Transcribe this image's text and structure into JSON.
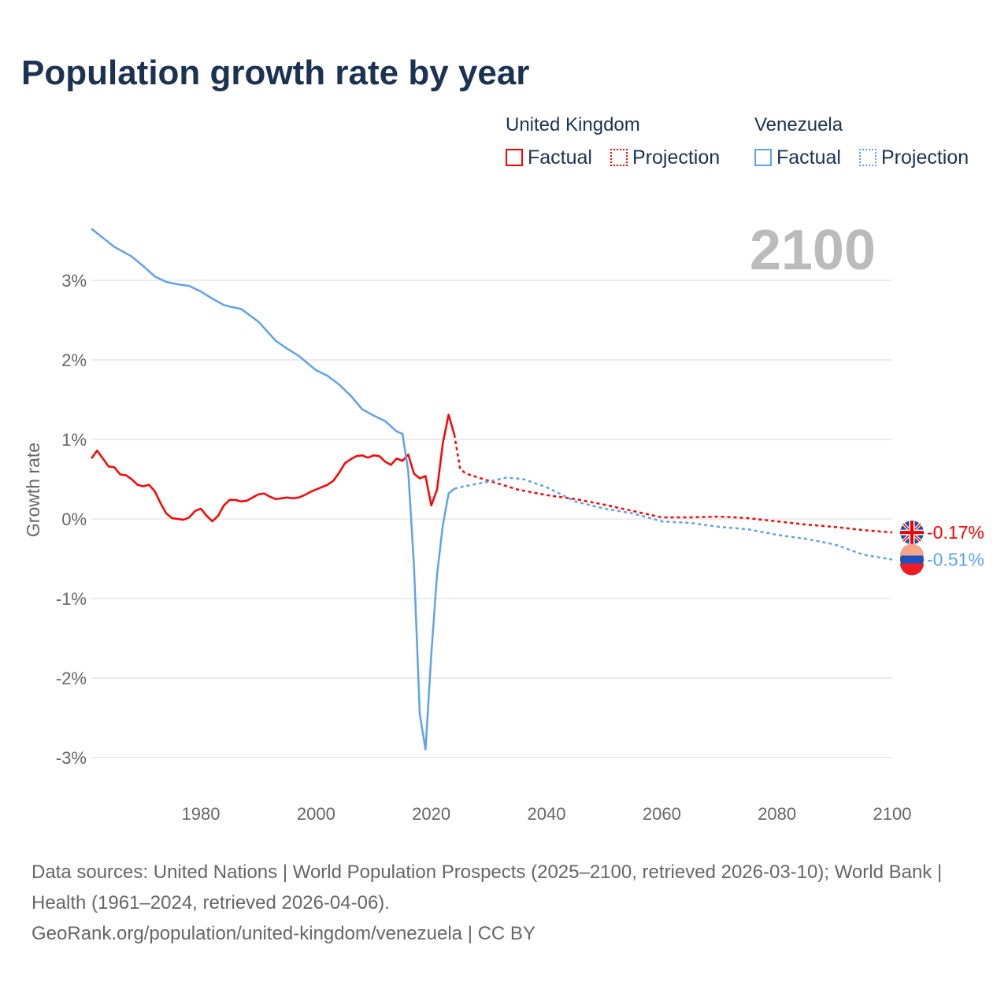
{
  "title": "Population growth rate by year",
  "legend": {
    "groups": [
      {
        "name": "United Kingdom",
        "factual": "Factual",
        "projection": "Projection",
        "color": "#ff0000"
      },
      {
        "name": "Venezuela",
        "factual": "Factual",
        "projection": "Projection",
        "color": "#5ea3e8"
      }
    ]
  },
  "year_label": "2100",
  "footer": {
    "sources": "Data sources: United Nations | World Population Prospects (2025–2100, retrieved 2026-03-10); World Bank | Health (1961–2024, retrieved 2026-04-06).",
    "credit": "GeoRank.org/population/united-kingdom/venezuela | CC BY"
  },
  "chart_data": {
    "type": "line",
    "title": "Population growth rate by year",
    "xlabel": "",
    "ylabel": "Growth rate",
    "xlim": [
      1961,
      2100
    ],
    "ylim": [
      -3.5,
      3.8
    ],
    "xticks": [
      1980,
      2000,
      2020,
      2040,
      2060,
      2080,
      2100
    ],
    "yticks": [
      -3,
      -2,
      -1,
      0,
      1,
      2,
      3
    ],
    "ytick_labels": [
      "-3%",
      "-2%",
      "-1%",
      "0%",
      "1%",
      "2%",
      "3%"
    ],
    "grid": true,
    "series": [
      {
        "name": "United Kingdom",
        "color": "#ff0000",
        "end_label": "-0.17%",
        "factual": {
          "x": [
            1961,
            1962,
            1963,
            1964,
            1965,
            1966,
            1967,
            1968,
            1969,
            1970,
            1971,
            1972,
            1973,
            1974,
            1975,
            1976,
            1977,
            1978,
            1979,
            1980,
            1981,
            1982,
            1983,
            1984,
            1985,
            1986,
            1987,
            1988,
            1989,
            1990,
            1991,
            1992,
            1993,
            1994,
            1995,
            1996,
            1997,
            1998,
            1999,
            2000,
            2001,
            2002,
            2003,
            2004,
            2005,
            2006,
            2007,
            2008,
            2009,
            2010,
            2011,
            2012,
            2013,
            2014,
            2015,
            2016,
            2017,
            2018,
            2019,
            2020,
            2021,
            2022,
            2023,
            2024
          ],
          "y": [
            0.76,
            0.86,
            0.76,
            0.66,
            0.65,
            0.56,
            0.55,
            0.5,
            0.43,
            0.41,
            0.43,
            0.35,
            0.2,
            0.07,
            0.01,
            0.0,
            -0.01,
            0.02,
            0.1,
            0.13,
            0.04,
            -0.03,
            0.04,
            0.17,
            0.24,
            0.24,
            0.22,
            0.23,
            0.27,
            0.31,
            0.32,
            0.28,
            0.25,
            0.26,
            0.27,
            0.26,
            0.27,
            0.3,
            0.34,
            0.37,
            0.4,
            0.43,
            0.48,
            0.58,
            0.7,
            0.75,
            0.79,
            0.8,
            0.77,
            0.8,
            0.79,
            0.72,
            0.68,
            0.76,
            0.73,
            0.81,
            0.57,
            0.51,
            0.54,
            0.17,
            0.37,
            0.95,
            1.31,
            1.06
          ]
        },
        "projection": {
          "x": [
            2024,
            2025,
            2026,
            2030,
            2035,
            2040,
            2045,
            2050,
            2055,
            2060,
            2065,
            2070,
            2075,
            2080,
            2085,
            2090,
            2095,
            2100
          ],
          "y": [
            1.06,
            0.63,
            0.57,
            0.48,
            0.37,
            0.3,
            0.25,
            0.18,
            0.1,
            0.02,
            0.02,
            0.03,
            0.01,
            -0.03,
            -0.07,
            -0.1,
            -0.14,
            -0.17
          ]
        }
      },
      {
        "name": "Venezuela",
        "color": "#5ea3e8",
        "end_label": "-0.51%",
        "factual": {
          "x": [
            1961,
            1965,
            1968,
            1970,
            1972,
            1974,
            1976,
            1978,
            1980,
            1982,
            1984,
            1985,
            1987,
            1990,
            1993,
            1995,
            1997,
            2000,
            2002,
            2004,
            2006,
            2008,
            2010,
            2012,
            2014,
            2015,
            2016,
            2017,
            2018,
            2019,
            2020,
            2021,
            2022,
            2023,
            2024
          ],
          "y": [
            3.65,
            3.42,
            3.3,
            3.18,
            3.05,
            2.98,
            2.95,
            2.93,
            2.86,
            2.77,
            2.69,
            2.67,
            2.64,
            2.48,
            2.24,
            2.14,
            2.05,
            1.87,
            1.8,
            1.69,
            1.55,
            1.38,
            1.3,
            1.23,
            1.1,
            1.07,
            0.6,
            -0.6,
            -2.45,
            -2.9,
            -1.7,
            -0.7,
            -0.08,
            0.32,
            0.38
          ]
        },
        "projection": {
          "x": [
            2024,
            2025,
            2030,
            2033,
            2036,
            2040,
            2045,
            2050,
            2055,
            2060,
            2065,
            2070,
            2075,
            2080,
            2085,
            2090,
            2095,
            2100
          ],
          "y": [
            0.38,
            0.4,
            0.47,
            0.52,
            0.5,
            0.4,
            0.22,
            0.13,
            0.07,
            -0.03,
            -0.05,
            -0.1,
            -0.13,
            -0.2,
            -0.25,
            -0.32,
            -0.45,
            -0.51
          ]
        }
      }
    ]
  }
}
